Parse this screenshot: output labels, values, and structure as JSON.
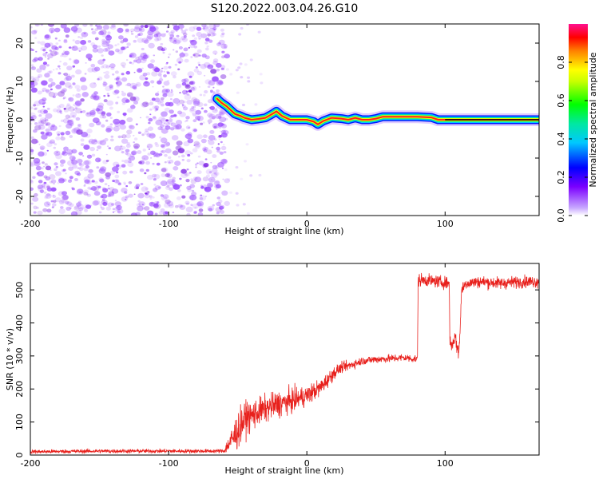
{
  "figure_title": "S120.2022.003.04.26.G10",
  "colors": {
    "trace": "#e8201c",
    "noise": "#9a4dff",
    "frame": "#000000"
  },
  "chart_data": [
    {
      "type": "heatmap",
      "xlabel": "Height of straight line (km)",
      "ylabel": "Frequency (Hz)",
      "xlim": [
        -200,
        168
      ],
      "ylim": [
        -25,
        25
      ],
      "xticks": [
        -200,
        -100,
        0,
        100
      ],
      "yticks": [
        -20,
        -10,
        0,
        10,
        20
      ],
      "noise_region_x": [
        -200,
        -60
      ],
      "ridge": {
        "x": [
          -65,
          -62,
          -58,
          -55,
          -52,
          -48,
          -45,
          -40,
          -35,
          -30,
          -25,
          -22,
          -18,
          -12,
          -5,
          0,
          5,
          8,
          12,
          18,
          25,
          30,
          35,
          40,
          45,
          50,
          55,
          60,
          70,
          80,
          90,
          95,
          100,
          110,
          120,
          130,
          140,
          150,
          160,
          168
        ],
        "y": [
          5.5,
          4.5,
          3.5,
          2.5,
          1.5,
          1.0,
          0.5,
          0,
          0.2,
          0.5,
          1.5,
          2.2,
          1.0,
          0,
          0,
          0,
          -0.5,
          -1.2,
          -0.3,
          0.5,
          0.3,
          0,
          0.5,
          0,
          0,
          0.3,
          0.8,
          0.8,
          0.8,
          0.8,
          0.6,
          0,
          0,
          0,
          0,
          0,
          0,
          0,
          0,
          0
        ]
      },
      "colorbar": {
        "label": "Normalized spectral amplitude",
        "range": [
          0,
          1
        ],
        "ticks": [
          "0.0",
          "0.2",
          "0.4",
          "0.6",
          "0.8"
        ],
        "tick_values": [
          0,
          0.2,
          0.4,
          0.6,
          0.8
        ]
      }
    },
    {
      "type": "line",
      "xlabel": "Height of straight line (km)",
      "ylabel": "SNR (10 * v/v)",
      "xlim": [
        -200,
        168
      ],
      "ylim": [
        0,
        580
      ],
      "xticks": [
        -200,
        -100,
        0,
        100
      ],
      "yticks": [
        0,
        100,
        200,
        300,
        400,
        500
      ],
      "series": [
        {
          "x": [
            -200,
            -150,
            -100,
            -60,
            -52,
            -45,
            -40,
            -30,
            -20,
            -10,
            0,
            10,
            20,
            25,
            30,
            40,
            50,
            60,
            70,
            80,
            80.5,
            85,
            95,
            103,
            103.5,
            105,
            107,
            110,
            112,
            115,
            125,
            140,
            155,
            168
          ],
          "y": [
            10,
            12,
            12,
            12,
            60,
            110,
            120,
            140,
            155,
            165,
            180,
            205,
            250,
            265,
            270,
            285,
            290,
            292,
            295,
            290,
            530,
            530,
            525,
            520,
            345,
            330,
            360,
            305,
            500,
            520,
            525,
            520,
            525,
            525
          ],
          "noise_amp": [
            6,
            6,
            6,
            6,
            55,
            50,
            45,
            40,
            40,
            35,
            30,
            25,
            20,
            15,
            15,
            12,
            12,
            12,
            12,
            12,
            20,
            18,
            18,
            18,
            20,
            20,
            25,
            25,
            20,
            18,
            18,
            18,
            18,
            18
          ]
        }
      ]
    }
  ]
}
